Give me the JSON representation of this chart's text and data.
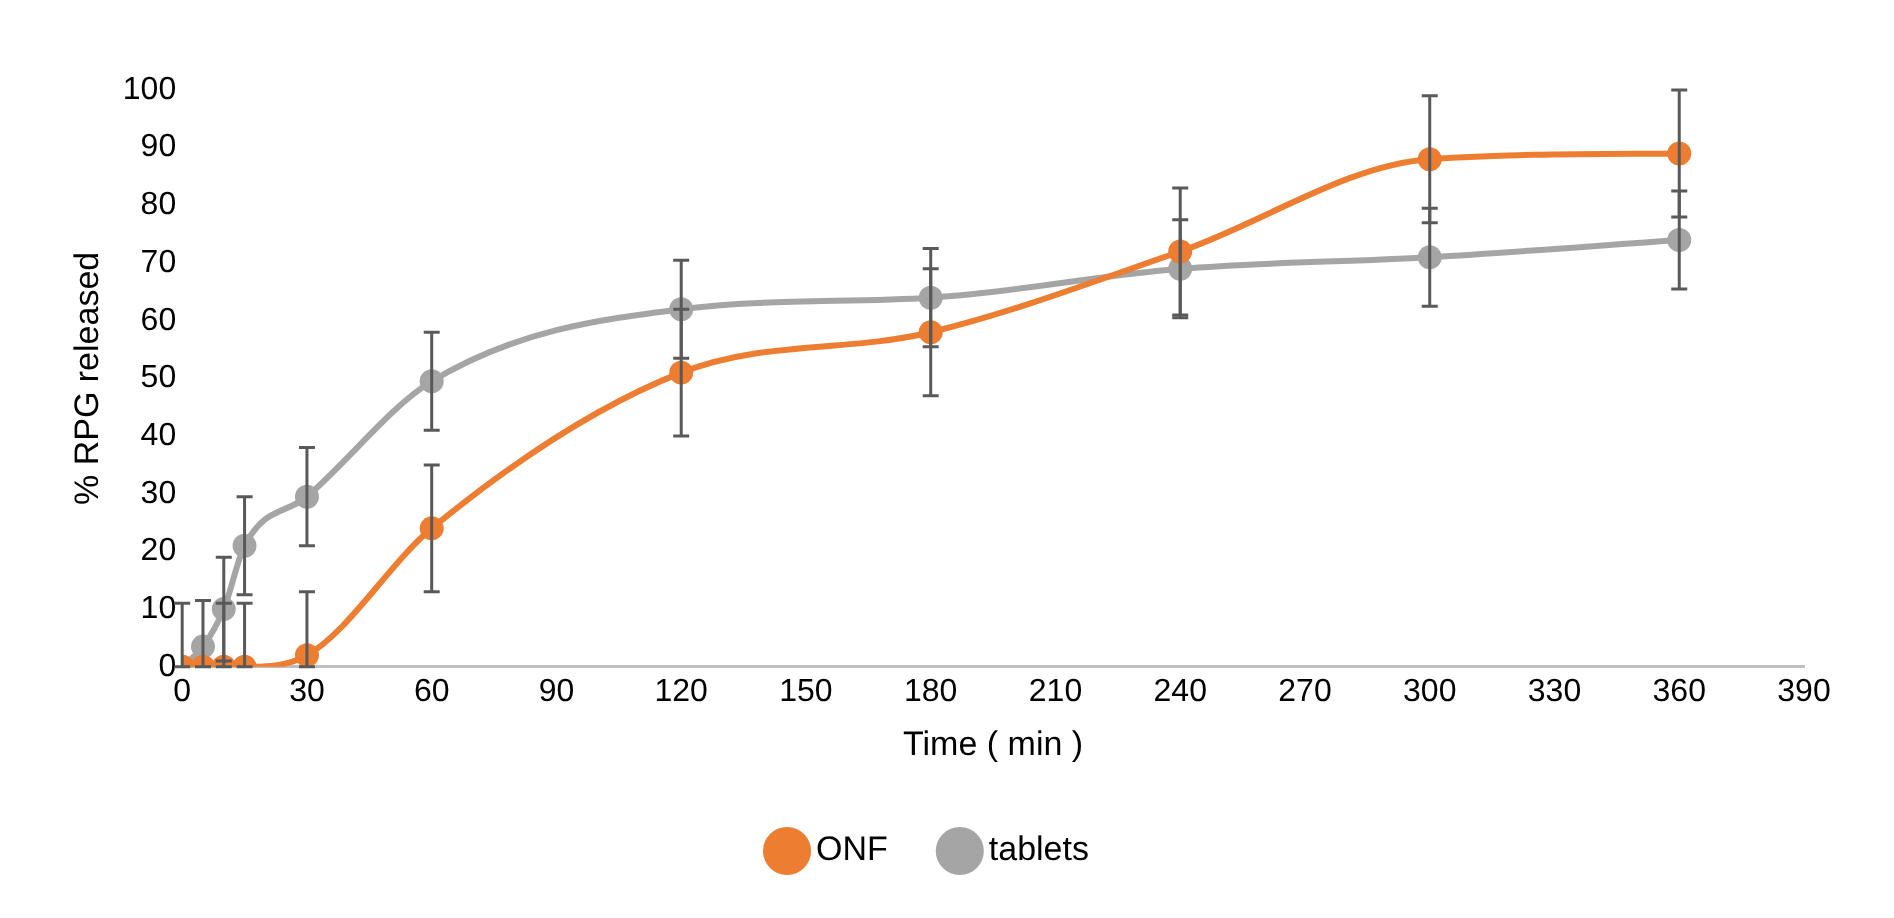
{
  "chart_data": {
    "type": "line",
    "xlabel": "Time ( min )",
    "ylabel": "% RPG released",
    "x": [
      0,
      5,
      10,
      15,
      30,
      60,
      120,
      180,
      240,
      300,
      360
    ],
    "series": [
      {
        "name": "ONF",
        "color": "#ed7d31",
        "values": [
          0,
          0,
          0,
          0,
          2,
          24,
          51,
          58,
          72,
          88,
          89
        ],
        "errors": [
          null,
          null,
          [
            0,
            11
          ],
          [
            0,
            11
          ],
          [
            0,
            13
          ],
          11,
          11,
          11,
          11,
          11,
          11
        ]
      },
      {
        "name": "tablets",
        "color": "#a5a5a5",
        "values": [
          0,
          3.5,
          10,
          21,
          29.5,
          49.5,
          62,
          64,
          69,
          71,
          74
        ],
        "errors": [
          [
            0,
            11
          ],
          [
            0,
            11.5
          ],
          [
            1,
            19
          ],
          8.5,
          8.5,
          8.5,
          8.5,
          8.5,
          8.5,
          8.5,
          8.5
        ]
      }
    ],
    "xlim": [
      0,
      390
    ],
    "xticks": [
      0,
      30,
      60,
      90,
      120,
      150,
      180,
      210,
      240,
      270,
      300,
      330,
      360,
      390
    ],
    "ylim": [
      0,
      100
    ],
    "yticks": [
      0,
      10,
      20,
      30,
      40,
      50,
      60,
      70,
      80,
      90,
      100
    ],
    "grid": false,
    "legend": "bottom",
    "marker": "circle",
    "line_style": "solid"
  }
}
